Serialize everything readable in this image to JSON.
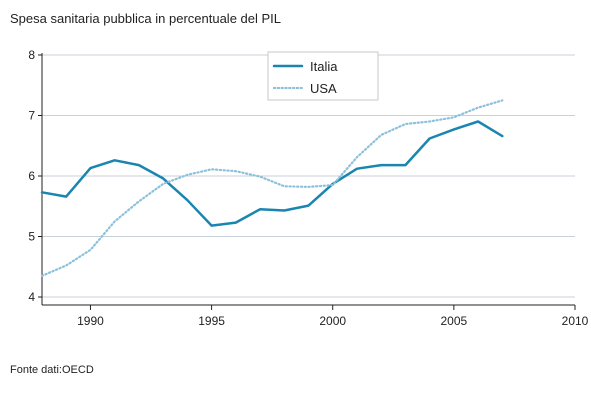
{
  "header": {
    "title": "Spesa sanitaria pubblica in percentuale del PIL"
  },
  "footer": {
    "source": "Fonte dati:OECD"
  },
  "chart_data": {
    "type": "line",
    "title": "Spesa sanitaria pubblica in percentuale del PIL",
    "xlabel": "",
    "ylabel": "",
    "xlim": [
      1988,
      2010
    ],
    "ylim": [
      4,
      8
    ],
    "x_ticks": [
      1990,
      1995,
      2000,
      2005,
      2010
    ],
    "y_ticks": [
      4,
      5,
      6,
      7,
      8
    ],
    "grid": "horizontal",
    "legend_position": "top-center",
    "series": [
      {
        "name": "Italia",
        "color": "#1a86b0",
        "style": "solid",
        "x": [
          1988,
          1989,
          1990,
          1991,
          1992,
          1993,
          1994,
          1995,
          1996,
          1997,
          1998,
          1999,
          2000,
          2001,
          2002,
          2003,
          2004,
          2005,
          2006,
          2007
        ],
        "values": [
          5.73,
          5.66,
          6.13,
          6.26,
          6.18,
          5.96,
          5.6,
          5.18,
          5.23,
          5.45,
          5.43,
          5.51,
          5.87,
          6.12,
          6.18,
          6.18,
          6.62,
          6.77,
          6.9,
          6.66
        ]
      },
      {
        "name": "USA",
        "color": "#8cc0db",
        "style": "dotted",
        "x": [
          1988,
          1989,
          1990,
          1991,
          1992,
          1993,
          1994,
          1995,
          1996,
          1997,
          1998,
          1999,
          2000,
          2001,
          2002,
          2003,
          2004,
          2005,
          2006,
          2007
        ],
        "values": [
          4.35,
          4.52,
          4.78,
          5.25,
          5.58,
          5.87,
          6.02,
          6.11,
          6.08,
          5.99,
          5.83,
          5.82,
          5.85,
          6.31,
          6.68,
          6.86,
          6.9,
          6.97,
          7.13,
          7.25
        ]
      }
    ]
  }
}
